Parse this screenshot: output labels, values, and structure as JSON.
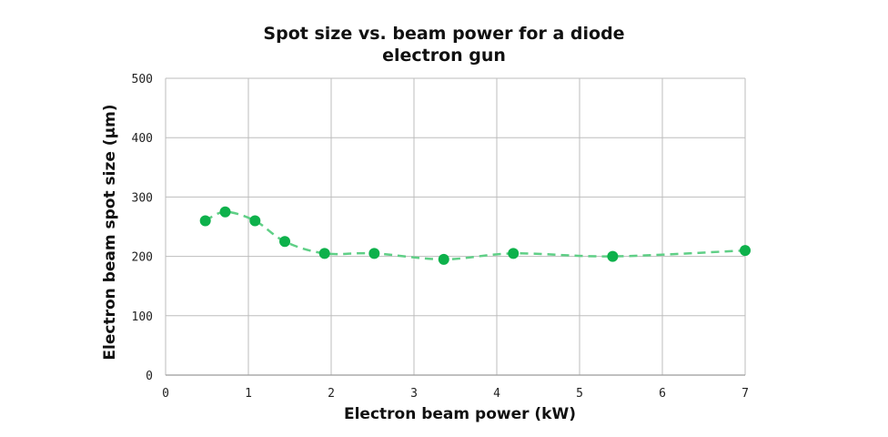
{
  "chart_data": {
    "type": "line",
    "title_lines": [
      "Spot size vs. beam power for a diode",
      "electron gun"
    ],
    "xlabel": "Electron beam power (kW)",
    "ylabel": "Electron beam spot size (µm)",
    "xlim": [
      0,
      7
    ],
    "ylim": [
      0,
      500
    ],
    "x_ticks": [
      "0",
      "1",
      "2",
      "3",
      "4",
      "5",
      "6",
      "7"
    ],
    "y_ticks": [
      "0",
      "100",
      "200",
      "300",
      "400",
      "500"
    ],
    "grid": true,
    "legend": "none",
    "series": [
      {
        "x": [
          0.48,
          0.72,
          1.08,
          1.44,
          1.92,
          2.52,
          3.36,
          4.2,
          5.4,
          7.0
        ],
        "y": [
          260,
          275,
          260,
          225,
          205,
          205,
          195,
          205,
          200,
          210
        ],
        "marker_color": "#0db14b",
        "line_color": "#5fcf86",
        "line_style": "dashed"
      }
    ]
  }
}
